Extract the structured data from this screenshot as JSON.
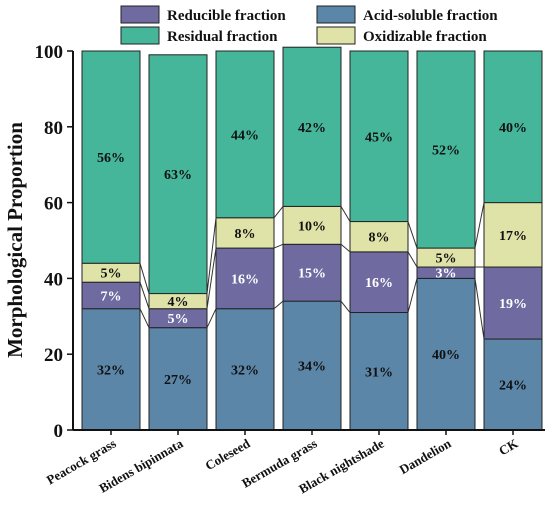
{
  "chart_data": {
    "type": "bar",
    "stacked": true,
    "ylabel": "Morphological Proportion",
    "xlabel": "",
    "ylim": [
      0,
      100
    ],
    "yticks": [
      0,
      20,
      40,
      60,
      80,
      100
    ],
    "categories": [
      "Peacock grass",
      "Bidens bipinnata",
      "Coleseed",
      "Bermuda grass",
      "Black nightshade",
      "Dandelion",
      "CK"
    ],
    "series": [
      {
        "name": "Acid-soluble fraction",
        "color": "#5b86a8",
        "text_color": "#111111",
        "values": [
          32,
          27,
          32,
          34,
          31,
          40,
          24
        ],
        "labels": [
          "32%",
          "27%",
          "32%",
          "34%",
          "31%",
          "40%",
          "24%"
        ]
      },
      {
        "name": "Reducible fraction",
        "color": "#6f6aa0",
        "text_color": "#ffffff",
        "values": [
          7,
          5,
          16,
          15,
          16,
          3,
          19
        ],
        "labels": [
          "7%",
          "5%",
          "16%",
          "15%",
          "16%",
          "3%",
          "19%"
        ]
      },
      {
        "name": "Oxidizable fraction",
        "color": "#dfe3a8",
        "text_color": "#111111",
        "values": [
          5,
          4,
          8,
          10,
          8,
          5,
          17
        ],
        "labels": [
          "5%",
          "4%",
          "8%",
          "10%",
          "8%",
          "5%",
          "17%"
        ]
      },
      {
        "name": "Residual fraction",
        "color": "#46b69b",
        "text_color": "#111111",
        "values": [
          56,
          63,
          44,
          42,
          45,
          52,
          40
        ],
        "labels": [
          "56%",
          "63%",
          "44%",
          "42%",
          "45%",
          "52%",
          "40%"
        ]
      }
    ],
    "legend": {
      "placement": "top",
      "order": [
        "Reducible fraction",
        "Acid-soluble fraction",
        "Residual fraction",
        "Oxidizable fraction"
      ]
    },
    "grid": false
  }
}
